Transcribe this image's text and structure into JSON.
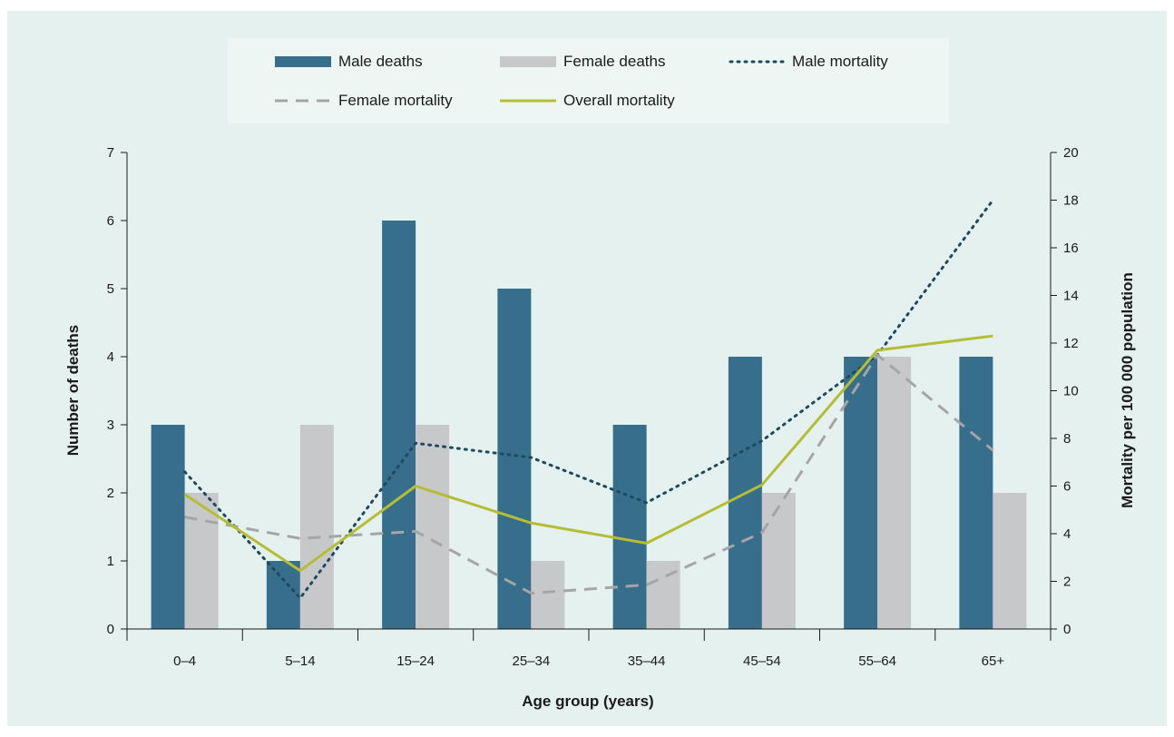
{
  "chart_data": {
    "type": "bar",
    "title": "",
    "xlabel": "Age group (years)",
    "ylabel": "Number of deaths",
    "y2label": "Mortality per 100 000 population",
    "categories": [
      "0–4",
      "5–14",
      "15–24",
      "25–34",
      "35–44",
      "45–54",
      "55–64",
      "65+"
    ],
    "ylim": [
      0,
      7
    ],
    "y2lim": [
      0,
      20
    ],
    "yticks": [
      0,
      1,
      2,
      3,
      4,
      5,
      6,
      7
    ],
    "y2ticks": [
      0,
      2,
      4,
      6,
      8,
      10,
      12,
      14,
      16,
      18,
      20
    ],
    "legend_position": "top-center",
    "grid": false,
    "series": [
      {
        "name": "Male deaths",
        "type": "bar",
        "axis": "left",
        "color": "#376e8c",
        "values": [
          3,
          1,
          6,
          5,
          3,
          4,
          4,
          4
        ]
      },
      {
        "name": "Female deaths",
        "type": "bar",
        "axis": "left",
        "color": "#c7c8ca",
        "values": [
          2,
          3,
          3,
          1,
          1,
          2,
          4,
          2
        ]
      },
      {
        "name": "Male mortality",
        "type": "line",
        "style": "dotted",
        "axis": "right",
        "color": "#1f4a5e",
        "values": [
          6.6,
          1.3,
          7.8,
          7.2,
          5.3,
          7.9,
          11.5,
          18.0
        ]
      },
      {
        "name": "Female mortality",
        "type": "line",
        "style": "dashed",
        "axis": "right",
        "color": "#a5a5a5",
        "values": [
          4.7,
          3.8,
          4.1,
          1.5,
          1.85,
          4.05,
          11.5,
          7.5
        ]
      },
      {
        "name": "Overall mortality",
        "type": "line",
        "style": "solid",
        "axis": "right",
        "color": "#b5bd33",
        "values": [
          5.65,
          2.45,
          6.0,
          4.45,
          3.6,
          6.05,
          11.7,
          12.3
        ]
      }
    ]
  }
}
